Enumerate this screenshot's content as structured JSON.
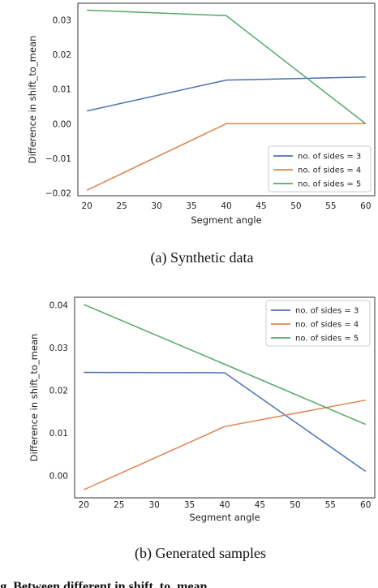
{
  "chart_data": [
    {
      "type": "line",
      "caption": "(a) Synthetic data",
      "xlabel": "Segment angle",
      "ylabel": "Difference in shift_to_mean",
      "x": [
        20,
        40,
        60
      ],
      "xticks": [
        20,
        25,
        30,
        35,
        40,
        45,
        50,
        55,
        60
      ],
      "yticks": [
        -0.02,
        -0.01,
        0.0,
        0.01,
        0.02,
        0.03
      ],
      "ytick_labels": [
        "−0.02",
        "−0.01",
        "0.00",
        "0.01",
        "0.02",
        "0.03"
      ],
      "xlim": [
        18.7,
        61.3
      ],
      "ylim": [
        -0.0208,
        0.0348
      ],
      "grid": false,
      "legend_position": "lower-right",
      "series": [
        {
          "name": "no. of sides = 3",
          "color": "#4c72b0",
          "values": [
            0.0037,
            0.0126,
            0.0135
          ]
        },
        {
          "name": "no. of sides = 4",
          "color": "#dd8452",
          "values": [
            -0.0192,
            0.0,
            0.0
          ]
        },
        {
          "name": "no. of sides = 5",
          "color": "#55a868",
          "values": [
            0.0328,
            0.0312,
            0.0
          ]
        }
      ]
    },
    {
      "type": "line",
      "caption": "(b) Generated samples",
      "xlabel": "Segment angle",
      "ylabel": "Difference in shift_to_mean",
      "x": [
        20,
        40,
        60
      ],
      "xticks": [
        20,
        25,
        30,
        35,
        40,
        45,
        50,
        55,
        60
      ],
      "yticks": [
        0.0,
        0.01,
        0.02,
        0.03,
        0.04
      ],
      "ytick_labels": [
        "0.00",
        "0.01",
        "0.02",
        "0.03",
        "0.04"
      ],
      "xlim": [
        18.7,
        61.3
      ],
      "ylim": [
        -0.0052,
        0.0418
      ],
      "grid": false,
      "legend_position": "upper-right",
      "series": [
        {
          "name": "no. of sides = 3",
          "color": "#4c72b0",
          "values": [
            0.0242,
            0.0241,
            0.001
          ]
        },
        {
          "name": "no. of sides = 4",
          "color": "#dd8452",
          "values": [
            -0.0033,
            0.0115,
            0.0177
          ]
        },
        {
          "name": "no. of sides = 5",
          "color": "#55a868",
          "values": [
            0.0401,
            0.0261,
            0.012
          ]
        }
      ]
    }
  ],
  "bottom_caption": "Fig. Between different in shift_to_mean"
}
